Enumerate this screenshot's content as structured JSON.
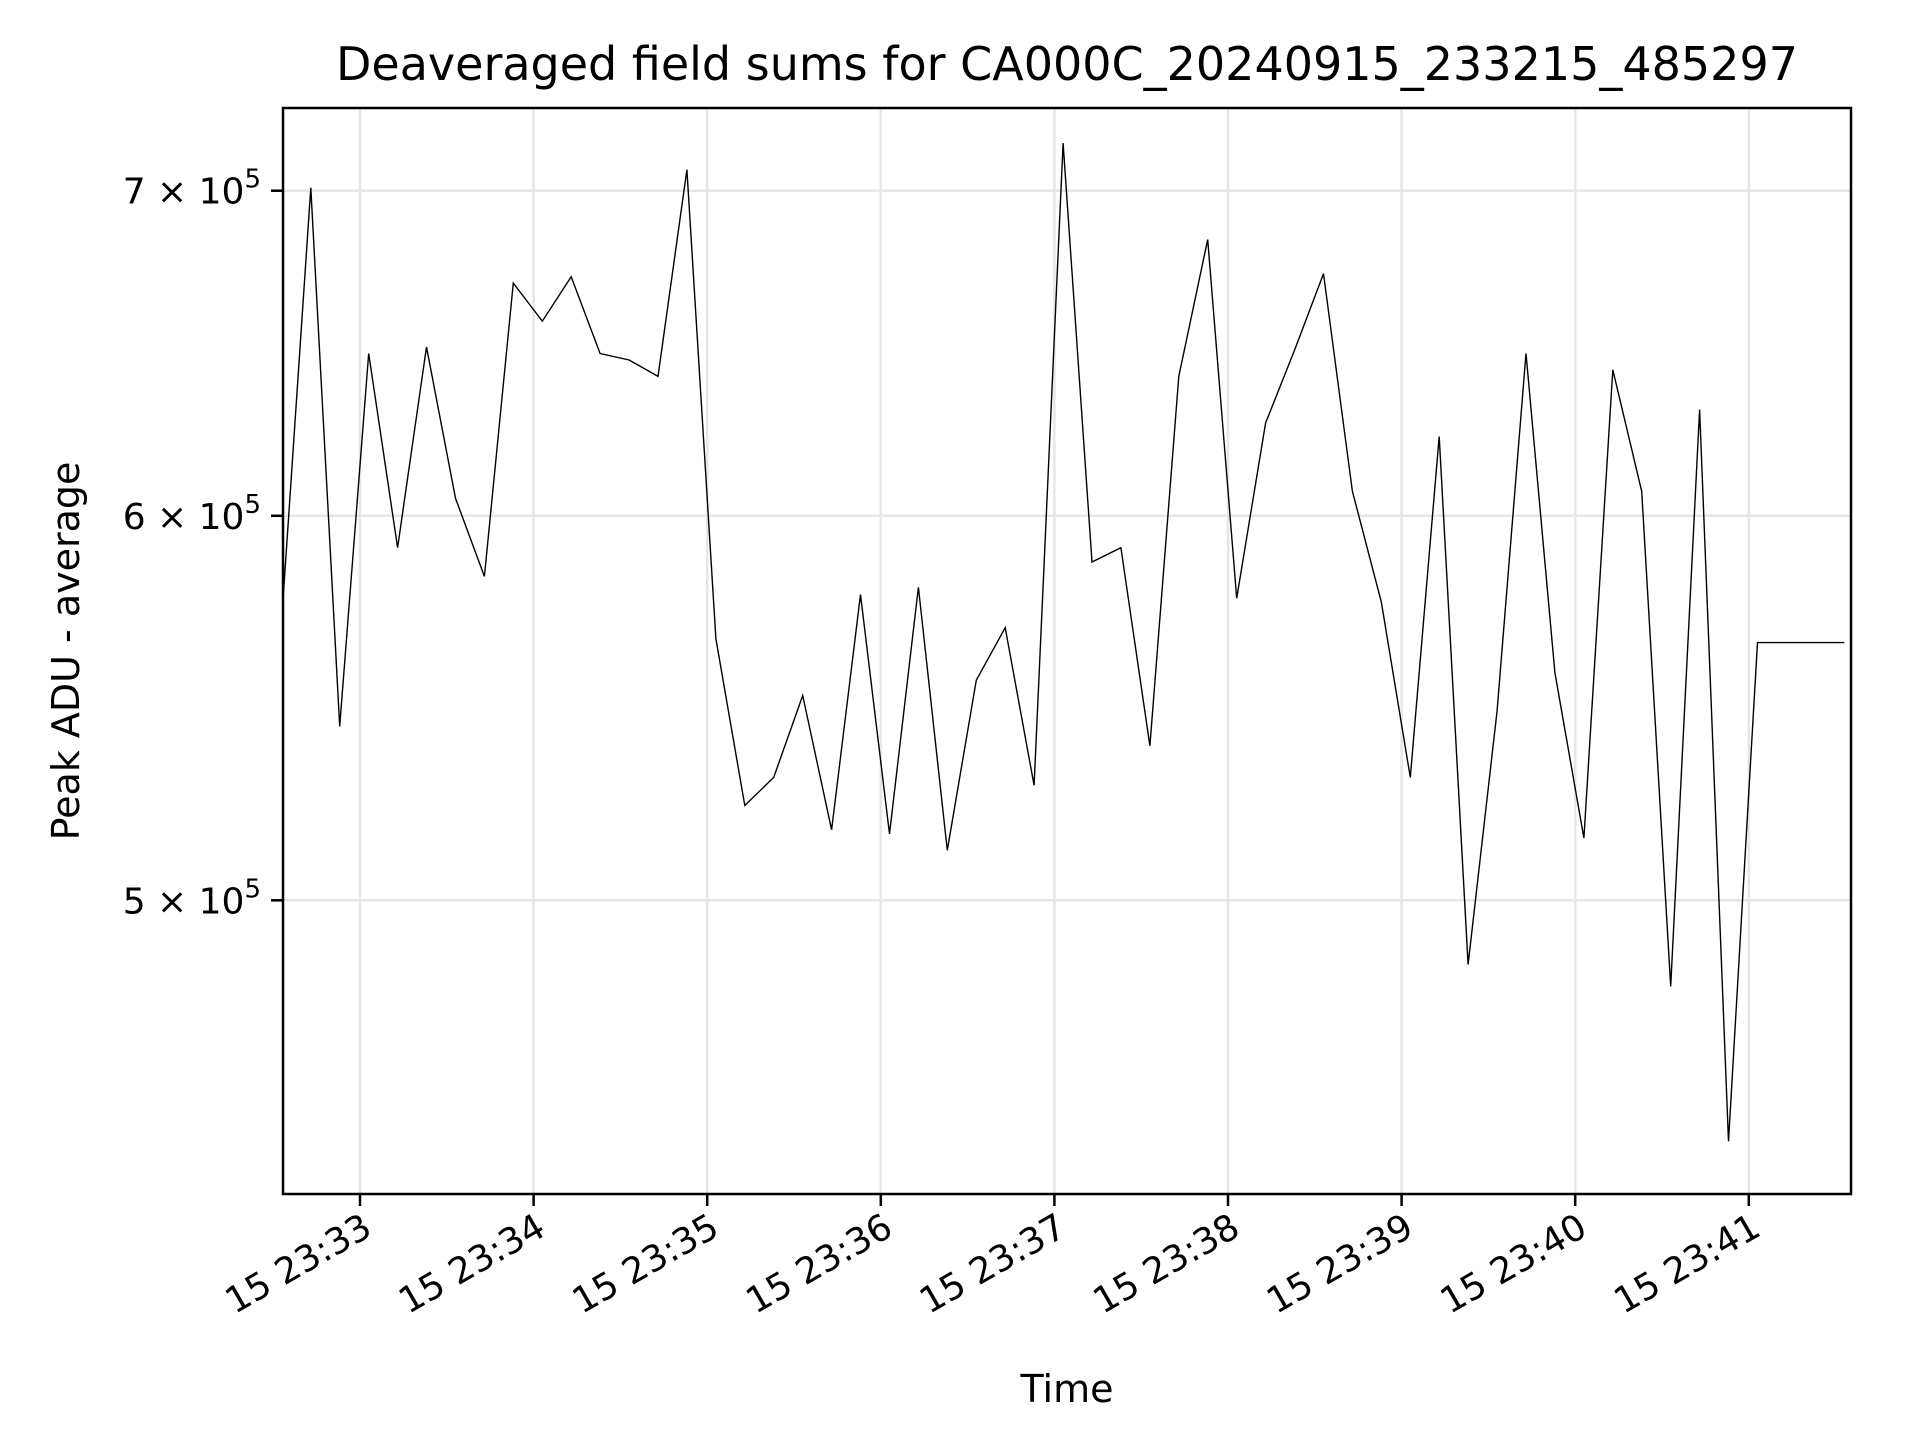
{
  "chart_data": {
    "type": "line",
    "title": "Deaveraged field sums for CA000C_20240915_233215_485297",
    "xlabel": "Time",
    "ylabel": "Peak ADU - average",
    "x_ticks": [
      "15 23:33",
      "15 23:34",
      "15 23:35",
      "15 23:36",
      "15 23:37",
      "15 23:38",
      "15 23:39",
      "15 23:40",
      "15 23:41"
    ],
    "y_ticks": [
      {
        "value": 500000,
        "mantissa": "5",
        "exp": "5"
      },
      {
        "value": 600000,
        "mantissa": "6",
        "exp": "5"
      },
      {
        "value": 700000,
        "mantissa": "7",
        "exp": "5"
      }
    ],
    "y_scale": "log",
    "ylim": [
      435000,
      728000
    ],
    "grid": true,
    "series": [
      {
        "color": "#000000",
        "x": [
          "23:32:33",
          "23:32:43",
          "23:32:53",
          "23:33:03",
          "23:33:13",
          "23:33:23",
          "23:33:33",
          "23:33:43",
          "23:33:53",
          "23:34:03",
          "23:34:13",
          "23:34:23",
          "23:34:33",
          "23:34:43",
          "23:34:53",
          "23:35:03",
          "23:35:13",
          "23:35:23",
          "23:35:33",
          "23:35:43",
          "23:35:53",
          "23:36:03",
          "23:36:13",
          "23:36:23",
          "23:36:33",
          "23:36:43",
          "23:36:53",
          "23:37:03",
          "23:37:13",
          "23:37:23",
          "23:37:33",
          "23:37:43",
          "23:37:53",
          "23:38:03",
          "23:38:13",
          "23:38:23",
          "23:38:33",
          "23:38:43",
          "23:38:53",
          "23:39:03",
          "23:39:13",
          "23:39:23",
          "23:39:33",
          "23:39:43",
          "23:39:53",
          "23:40:03",
          "23:40:13",
          "23:40:23",
          "23:40:33",
          "23:40:43",
          "23:40:53",
          "23:41:03",
          "23:41:13",
          "23:41:23",
          "23:41:33"
        ],
        "y": [
          572000,
          701000,
          543000,
          648000,
          591000,
          650000,
          605000,
          583000,
          670000,
          658000,
          672000,
          648000,
          646000,
          641000,
          707000,
          566000,
          523000,
          530000,
          551000,
          517000,
          578000,
          516000,
          580000,
          512000,
          555000,
          569000,
          528000,
          716000,
          587000,
          591000,
          538000,
          641000,
          684000,
          577000,
          627000,
          649000,
          673000,
          607000,
          576000,
          530000,
          623000,
          485000,
          547000,
          648000,
          557000,
          515000,
          643000,
          607000,
          480000,
          631000,
          446000,
          565000,
          565000,
          565000,
          565000
        ]
      }
    ]
  }
}
